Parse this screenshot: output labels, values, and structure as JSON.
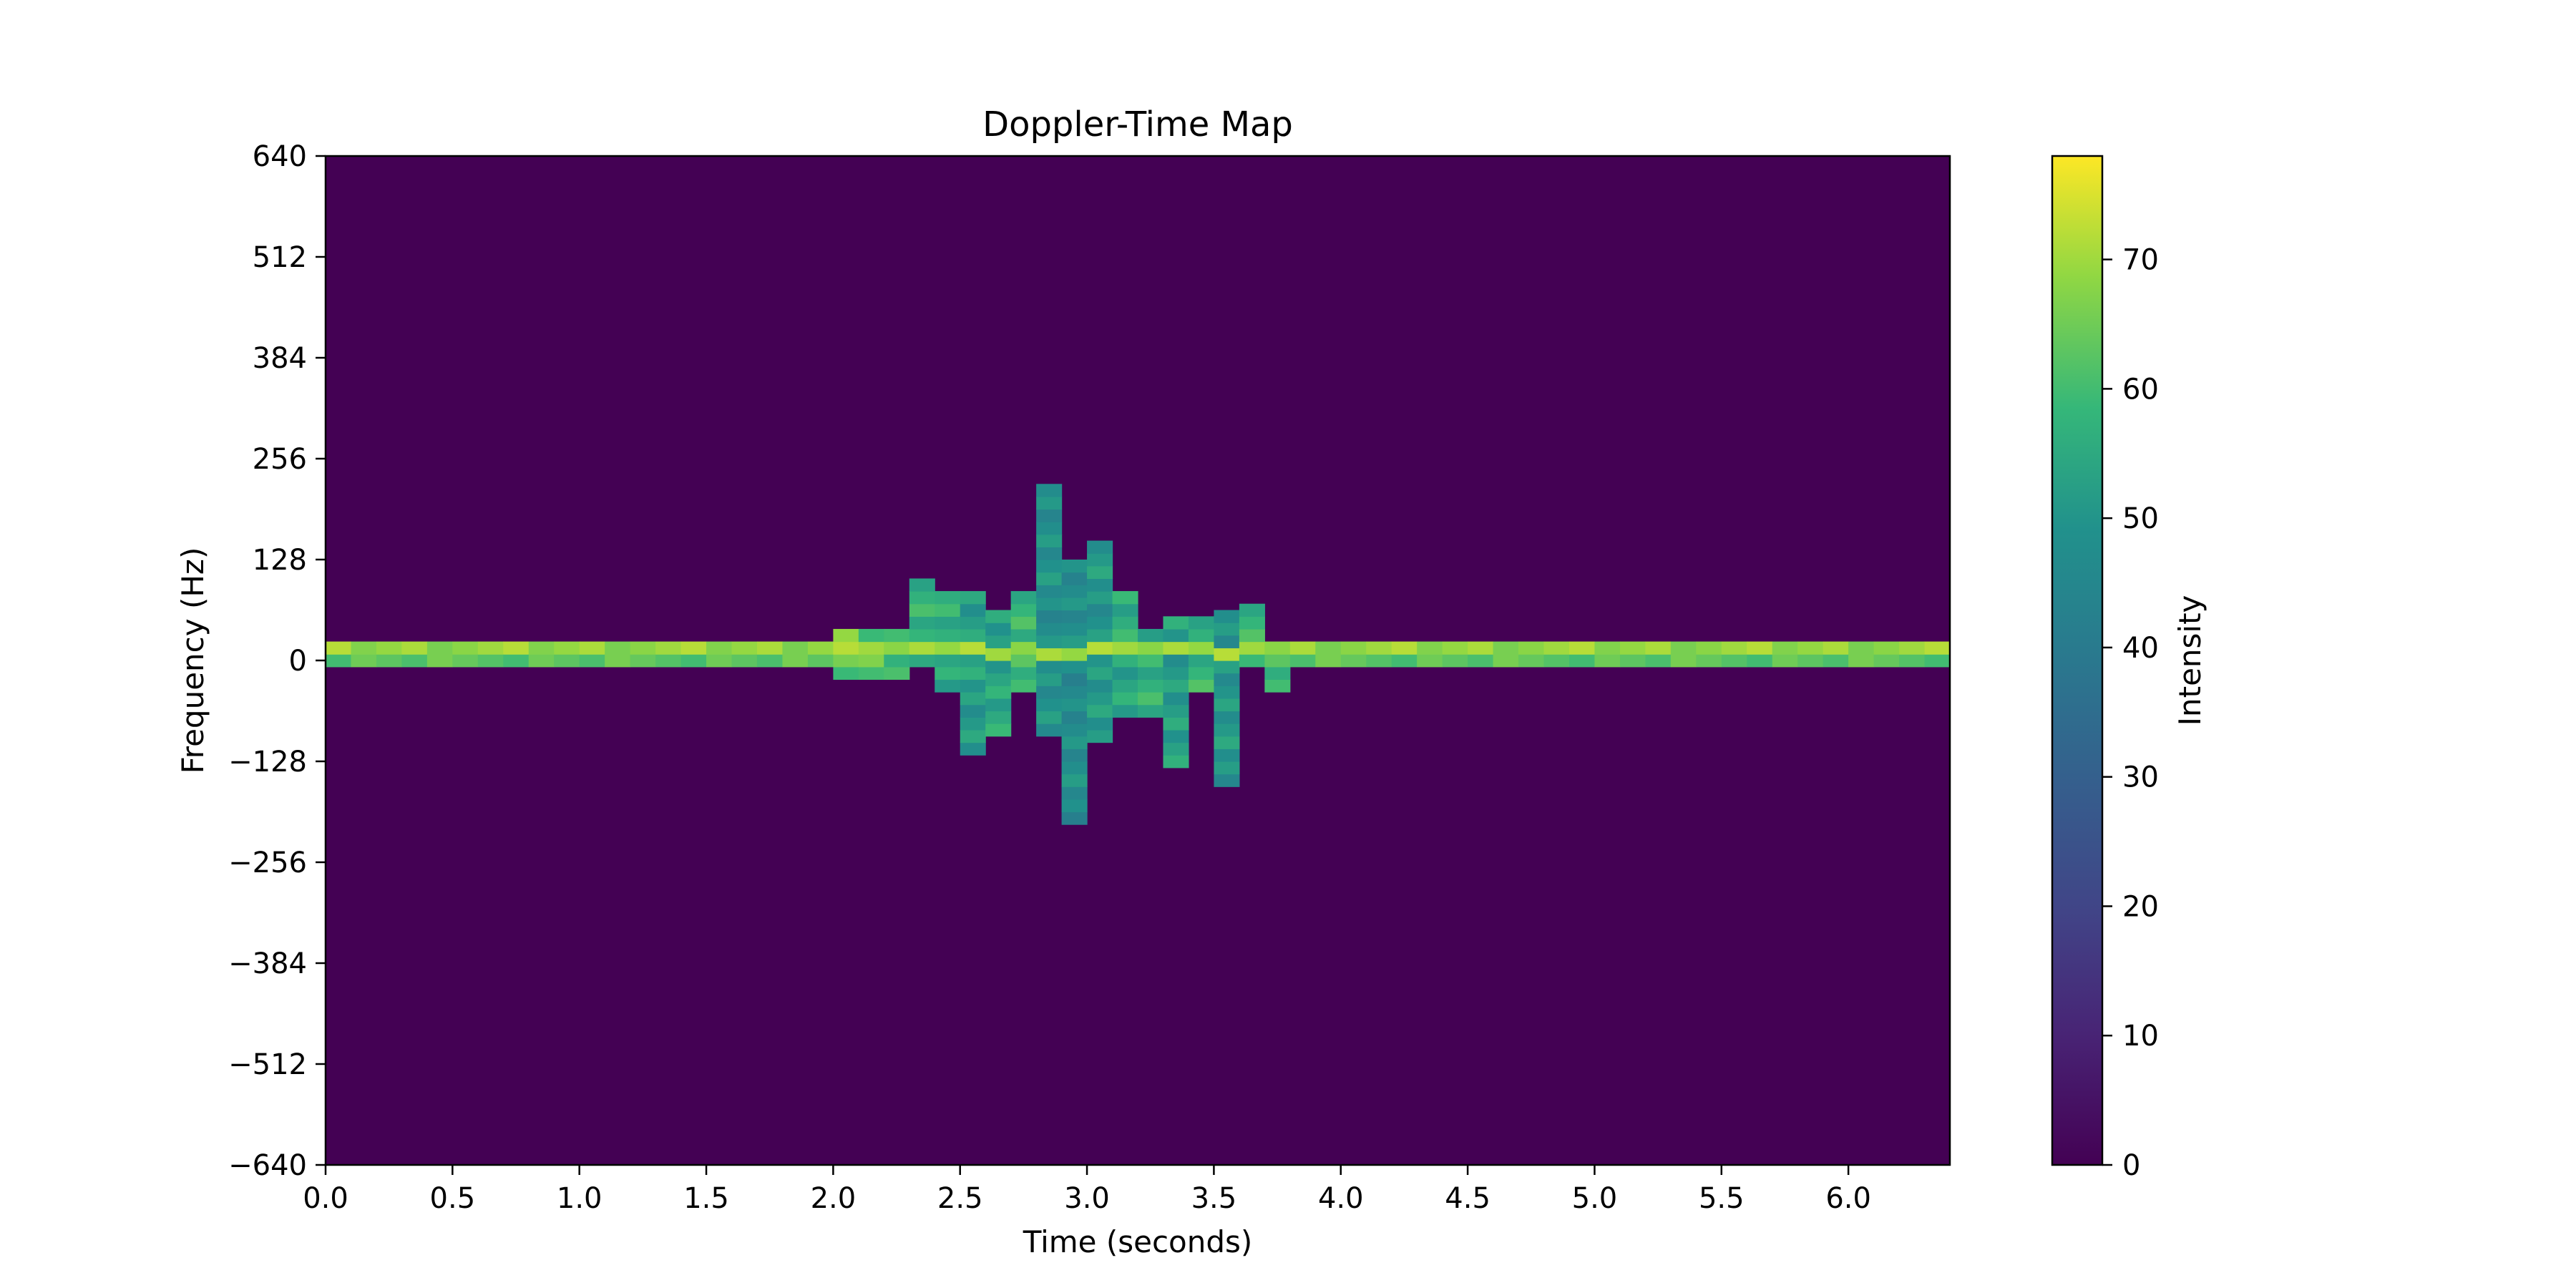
{
  "chart_data": {
    "type": "heatmap",
    "title": "Doppler-Time Map",
    "xlabel": "Time (seconds)",
    "ylabel": "Frequency (Hz)",
    "colorbar_label": "Intensity",
    "xlim": [
      0.0,
      6.4
    ],
    "ylim": [
      -640,
      640
    ],
    "x_ticks": [
      0.0,
      0.5,
      1.0,
      1.5,
      2.0,
      2.5,
      3.0,
      3.5,
      4.0,
      4.5,
      5.0,
      5.5,
      6.0
    ],
    "x_tick_labels": [
      "0.0",
      "0.5",
      "1.0",
      "1.5",
      "2.0",
      "2.5",
      "3.0",
      "3.5",
      "4.0",
      "4.5",
      "5.0",
      "5.5",
      "6.0"
    ],
    "y_ticks": [
      640,
      512,
      384,
      256,
      128,
      0,
      -128,
      -256,
      -384,
      -512,
      -640
    ],
    "y_tick_labels": [
      "640",
      "512",
      "384",
      "256",
      "128",
      "0",
      "−128",
      "−256",
      "−384",
      "−512",
      "−640"
    ],
    "colorbar_range": [
      0,
      78
    ],
    "colorbar_ticks": [
      0,
      10,
      20,
      30,
      40,
      50,
      60,
      70
    ],
    "colorbar_tick_labels": [
      "0",
      "10",
      "20",
      "30",
      "40",
      "50",
      "60",
      "70"
    ],
    "colormap": "viridis",
    "background_value": 0,
    "time_bin_width": 0.1,
    "frequency_bin_width": 16,
    "baseline_band": {
      "f_min": -8,
      "f_max": 24,
      "center_bin": [
        0,
        16
      ],
      "value_range": [
        60,
        72
      ]
    },
    "columns": [
      {
        "t": 1.9,
        "f_min": 0,
        "f_max": 24,
        "value": 62
      },
      {
        "t": 2.0,
        "f_min": -24,
        "f_max": 40,
        "value": 64
      },
      {
        "t": 2.1,
        "f_min": -24,
        "f_max": 40,
        "value": 63
      },
      {
        "t": 2.2,
        "f_min": -24,
        "f_max": 40,
        "value": 62
      },
      {
        "t": 2.3,
        "f_min": -8,
        "f_max": 104,
        "value": 58
      },
      {
        "t": 2.4,
        "f_min": -40,
        "f_max": 88,
        "value": 55
      },
      {
        "t": 2.5,
        "f_min": -120,
        "f_max": 80,
        "value": 52
      },
      {
        "t": 2.6,
        "f_min": -96,
        "f_max": 56,
        "value": 54
      },
      {
        "t": 2.7,
        "f_min": -40,
        "f_max": 88,
        "value": 58
      },
      {
        "t": 2.8,
        "f_min": -96,
        "f_max": 216,
        "value": 48
      },
      {
        "t": 2.9,
        "f_min": -208,
        "f_max": 120,
        "value": 47
      },
      {
        "t": 3.0,
        "f_min": -104,
        "f_max": 152,
        "value": 50
      },
      {
        "t": 3.1,
        "f_min": -72,
        "f_max": 88,
        "value": 55
      },
      {
        "t": 3.2,
        "f_min": -72,
        "f_max": 40,
        "value": 56
      },
      {
        "t": 3.3,
        "f_min": -136,
        "f_max": 56,
        "value": 52
      },
      {
        "t": 3.4,
        "f_min": -40,
        "f_max": 56,
        "value": 57
      },
      {
        "t": 3.5,
        "f_min": -160,
        "f_max": 56,
        "value": 50
      },
      {
        "t": 3.6,
        "f_min": -8,
        "f_max": 72,
        "value": 58
      },
      {
        "t": 3.7,
        "f_min": -40,
        "f_max": 24,
        "value": 60
      }
    ]
  }
}
